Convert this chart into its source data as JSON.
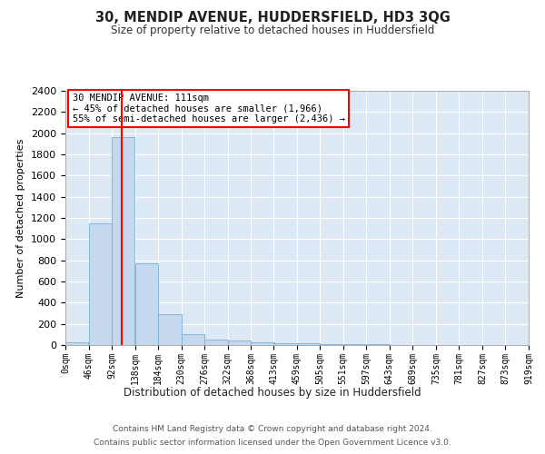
{
  "title": "30, MENDIP AVENUE, HUDDERSFIELD, HD3 3QG",
  "subtitle": "Size of property relative to detached houses in Huddersfield",
  "xlabel": "Distribution of detached houses by size in Huddersfield",
  "ylabel": "Number of detached properties",
  "footer_line1": "Contains HM Land Registry data © Crown copyright and database right 2024.",
  "footer_line2": "Contains public sector information licensed under the Open Government Licence v3.0.",
  "annotation_line1": "30 MENDIP AVENUE: 111sqm",
  "annotation_line2": "← 45% of detached houses are smaller (1,966)",
  "annotation_line3": "55% of semi-detached houses are larger (2,436) →",
  "bar_color": "#c5d8ee",
  "bar_edge_color": "#7aafd4",
  "background_color": "#dce9f5",
  "grid_color": "#ffffff",
  "fig_background": "#ffffff",
  "red_line_x": 111,
  "bins": [
    0,
    46,
    92,
    138,
    184,
    230,
    276,
    322,
    368,
    413,
    459,
    505,
    551,
    597,
    643,
    689,
    735,
    781,
    827,
    873,
    919
  ],
  "bin_labels": [
    "0sqm",
    "46sqm",
    "92sqm",
    "138sqm",
    "184sqm",
    "230sqm",
    "276sqm",
    "322sqm",
    "368sqm",
    "413sqm",
    "459sqm",
    "505sqm",
    "551sqm",
    "597sqm",
    "643sqm",
    "689sqm",
    "735sqm",
    "781sqm",
    "827sqm",
    "873sqm",
    "919sqm"
  ],
  "bar_heights": [
    30,
    1150,
    1966,
    770,
    295,
    105,
    50,
    45,
    30,
    20,
    15,
    10,
    5,
    5,
    3,
    2,
    2,
    1,
    1,
    1
  ],
  "ylim": [
    0,
    2400
  ],
  "yticks": [
    0,
    200,
    400,
    600,
    800,
    1000,
    1200,
    1400,
    1600,
    1800,
    2000,
    2200,
    2400
  ]
}
